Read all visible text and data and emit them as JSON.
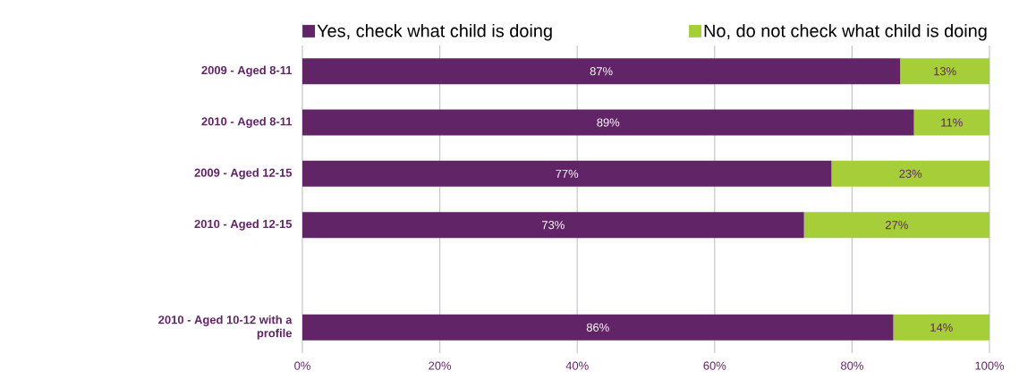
{
  "chart_data": {
    "type": "bar",
    "orientation": "horizontal",
    "stacked": true,
    "categories": [
      "2009 - Aged 8-11",
      "2010 - Aged 8-11",
      "2009 - Aged 12-15",
      "2010 - Aged 12-15",
      null,
      "2010 - Aged 10-12 with a profile"
    ],
    "series": [
      {
        "name": "Yes, check what child is doing",
        "color": "#612466",
        "values": [
          87,
          89,
          77,
          73,
          null,
          86
        ],
        "value_labels": [
          "87%",
          "89%",
          "77%",
          "73%",
          null,
          "86%"
        ]
      },
      {
        "name": "No, do not check what child is doing",
        "color": "#a6ce39",
        "values": [
          13,
          11,
          23,
          27,
          null,
          14
        ],
        "value_labels": [
          "13%",
          "11%",
          "23%",
          "27%",
          null,
          "14%"
        ]
      }
    ],
    "xlim": [
      0,
      100
    ],
    "xticks": [
      {
        "value": 0,
        "label": "0%"
      },
      {
        "value": 20,
        "label": "20%"
      },
      {
        "value": 40,
        "label": "40%"
      },
      {
        "value": 60,
        "label": "60%"
      },
      {
        "value": 80,
        "label": "80%"
      },
      {
        "value": 100,
        "label": "100%"
      }
    ],
    "grid": "x",
    "legend": "top"
  }
}
